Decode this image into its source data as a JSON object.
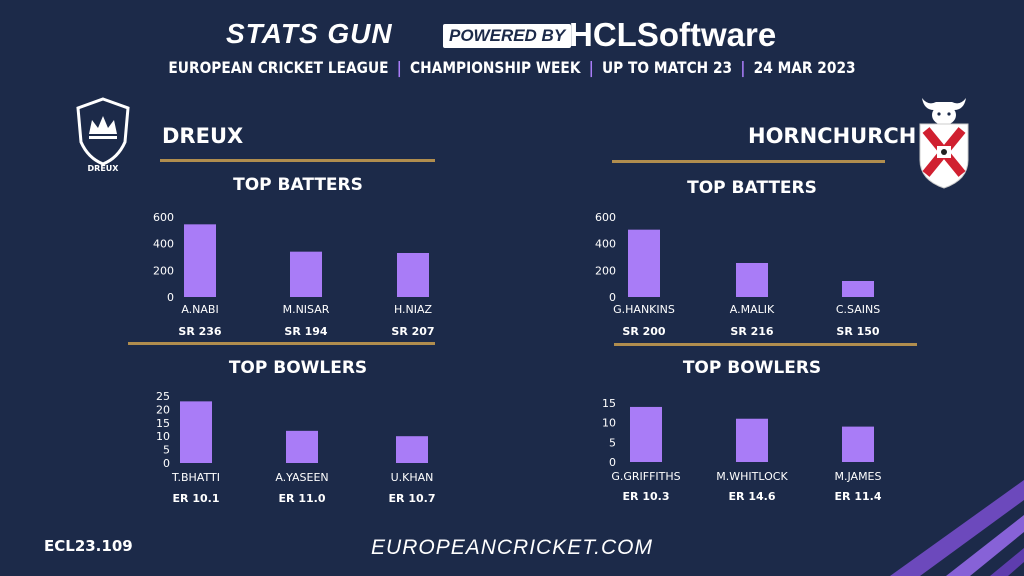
{
  "header": {
    "brand_left": "STATS GUN",
    "powered_by": "POWERED BY",
    "brand_right_a": "HCL",
    "brand_right_b": "Software",
    "subtitle_parts": [
      "EUROPEAN CRICKET LEAGUE",
      "CHAMPIONSHIP WEEK",
      "UP TO MATCH  23",
      "24 MAR 2023"
    ],
    "separator": "|"
  },
  "teams": {
    "left": {
      "name": "DREUX",
      "logo_text": "DREUX"
    },
    "right": {
      "name": "HORNCHURCH"
    }
  },
  "footer": {
    "code": "ECL23.109",
    "website": "EUROPEANCRICKET.COM"
  },
  "colors": {
    "background": "#1c2a49",
    "bar": "#a97cf7",
    "gold": "#b08d4e",
    "separator": "#a97cf7"
  },
  "chart_data": [
    {
      "id": "dreux-batters",
      "type": "bar",
      "title": "TOP BATTERS",
      "categories": [
        "A.NABI",
        "M.NISAR",
        "H.NIAZ"
      ],
      "values": [
        545,
        340,
        330
      ],
      "sublabels": [
        "SR 236",
        "SR 194",
        "SR 207"
      ],
      "ylim": [
        0,
        600
      ],
      "yticks": [
        0,
        200,
        400,
        600
      ]
    },
    {
      "id": "dreux-bowlers",
      "type": "bar",
      "title": "TOP BOWLERS",
      "categories": [
        "T.BHATTI",
        "A.YASEEN",
        "U.KHAN"
      ],
      "values": [
        23,
        12,
        10
      ],
      "sublabels": [
        "ER 10.1",
        "ER 11.0",
        "ER 10.7"
      ],
      "ylim": [
        0,
        25
      ],
      "yticks": [
        0,
        5,
        10,
        15,
        20,
        25
      ]
    },
    {
      "id": "hornchurch-batters",
      "type": "bar",
      "title": "TOP BATTERS",
      "categories": [
        "G.HANKINS",
        "A.MALIK",
        "C.SAINS"
      ],
      "values": [
        505,
        255,
        120
      ],
      "sublabels": [
        "SR 200",
        "SR 216",
        "SR 150"
      ],
      "ylim": [
        0,
        600
      ],
      "yticks": [
        0,
        200,
        400,
        600
      ]
    },
    {
      "id": "hornchurch-bowlers",
      "type": "bar",
      "title": "TOP BOWLERS",
      "categories": [
        "G.GRIFFITHS",
        "M.WHITLOCK",
        "M.JAMES"
      ],
      "values": [
        14,
        11,
        9
      ],
      "sublabels": [
        "ER 10.3",
        "ER 14.6",
        "ER 11.4"
      ],
      "ylim": [
        0,
        15
      ],
      "yticks": [
        0,
        5,
        10,
        15
      ]
    }
  ]
}
